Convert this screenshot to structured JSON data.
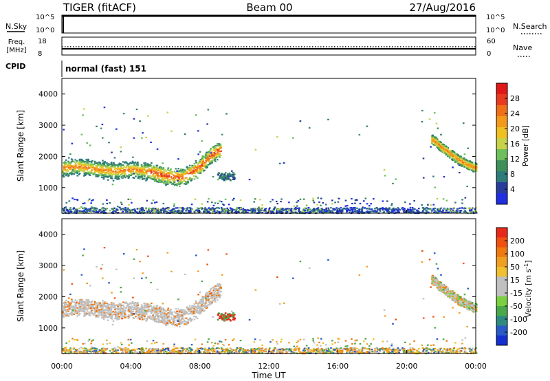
{
  "header": {
    "title": "TIGER (fitACF)",
    "beam": "Beam 00",
    "date": "27/Aug/2016"
  },
  "sky_panel": {
    "left_label": "N.Sky",
    "right_label": "N.Search",
    "ticks": [
      "10^5",
      "10^0"
    ]
  },
  "freq_panel": {
    "left_label_line1": "Freq.",
    "left_label_line2": "[MHz]",
    "right_label": "Nave",
    "left_ticks": [
      "18",
      "8"
    ],
    "right_ticks": [
      "60",
      "0"
    ]
  },
  "cpid_panel": {
    "label": "CPID",
    "mode_text": "normal (fast) 151"
  },
  "chart_data": [
    {
      "type": "heatmap",
      "name_of_quantity": "Power",
      "ylabel": "Slant Range [km]",
      "xlabel": "",
      "ylim": [
        180,
        4500
      ],
      "xlim": [
        0,
        24
      ],
      "y_ticks": [
        1000,
        2000,
        3000,
        4000
      ],
      "colorbar_label": "Power [dB]",
      "colorbar_ticks": [
        "28",
        "24",
        "20",
        "16",
        "12",
        "8",
        "4"
      ],
      "colorbar_colors": [
        "#1e2ee0",
        "#283c9c",
        "#2f7a7a",
        "#3f8f5a",
        "#6cbf5a",
        "#c7d24a",
        "#f0c020",
        "#f39a1a",
        "#f07018",
        "#e83a20",
        "#e01818"
      ],
      "features": [
        {
          "x": [
            0,
            1,
            2,
            3,
            4,
            5,
            6,
            7,
            8,
            8.5,
            9
          ],
          "y": [
            1650,
            1700,
            1600,
            1550,
            1600,
            1550,
            1400,
            1350,
            1700,
            2000,
            2200
          ]
        },
        {
          "x": [
            21.5,
            22,
            22.5,
            23,
            23.5,
            24
          ],
          "y": [
            2550,
            2300,
            2100,
            1900,
            1750,
            1650
          ]
        }
      ]
    },
    {
      "type": "heatmap",
      "name_of_quantity": "Velocity",
      "ylabel": "Slant Range [km]",
      "xlabel": "Time UT",
      "ylim": [
        180,
        4500
      ],
      "xlim": [
        0,
        24
      ],
      "y_ticks": [
        1000,
        2000,
        3000,
        4000
      ],
      "x_tick_labels": [
        "00:00",
        "04:00",
        "08:00",
        "12:00",
        "16:00",
        "20:00",
        "00:00"
      ],
      "colorbar_label_main": "Velocity [m s",
      "colorbar_label_sup": "-1",
      "colorbar_label_end": "]",
      "colorbar_ticks": [
        "200",
        "100",
        "50",
        "15",
        "-15",
        "-50",
        "-100",
        "-200"
      ],
      "colorbar_colors": [
        "#1430d0",
        "#2a5ac8",
        "#2e8a80",
        "#4aa84a",
        "#7ad040",
        "#c0c0c0",
        "#c0c0c0",
        "#f0c030",
        "#f0a020",
        "#f07a10",
        "#f05010",
        "#e82818"
      ]
    }
  ]
}
